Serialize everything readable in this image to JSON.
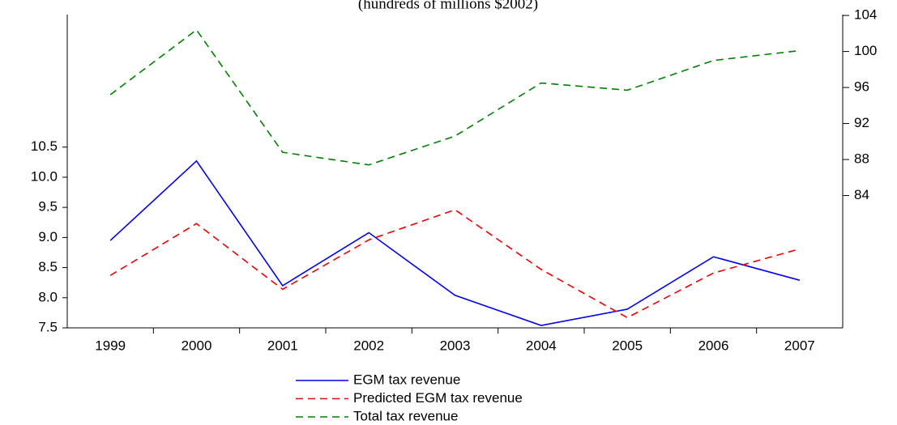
{
  "chart_data": {
    "type": "line",
    "subtitle": "(hundreds of millions $2002)",
    "categories": [
      "1999",
      "2000",
      "2001",
      "2002",
      "2003",
      "2004",
      "2005",
      "2006",
      "2007"
    ],
    "ylim": [
      7.5,
      12.7
    ],
    "yticks": [
      {
        "value": 7.5,
        "label": "7.5"
      },
      {
        "value": 8.0,
        "label": "8.0"
      },
      {
        "value": 8.5,
        "label": "8.5"
      },
      {
        "value": 9.0,
        "label": "9.0"
      },
      {
        "value": 9.5,
        "label": "9.5"
      },
      {
        "value": 10.0,
        "label": "10.0"
      },
      {
        "value": 10.5,
        "label": "10.5"
      }
    ],
    "y2lim": [
      69.3,
      104.1
    ],
    "y2ticks": [
      84,
      88,
      92,
      96,
      100,
      104
    ],
    "legend": "bottom",
    "series": [
      {
        "name": "EGM tax revenue",
        "color": "#0000ee",
        "dash": "solid",
        "values": [
          8.95,
          10.27,
          8.2,
          9.08,
          8.04,
          7.54,
          7.81,
          8.68,
          8.29
        ]
      },
      {
        "name": "Predicted EGM tax revenue",
        "color": "#ee0000",
        "dash": "dashed",
        "values": [
          8.37,
          9.23,
          8.14,
          8.96,
          9.46,
          8.47,
          7.67,
          8.41,
          8.81
        ]
      },
      {
        "name": "Total tax revenue",
        "color": "#008000",
        "dash": "dashed",
        "axis": "y2",
        "values": [
          95.2,
          102.4,
          88.8,
          87.4,
          90.6,
          96.5,
          95.7,
          99.0,
          100.1
        ]
      }
    ]
  }
}
